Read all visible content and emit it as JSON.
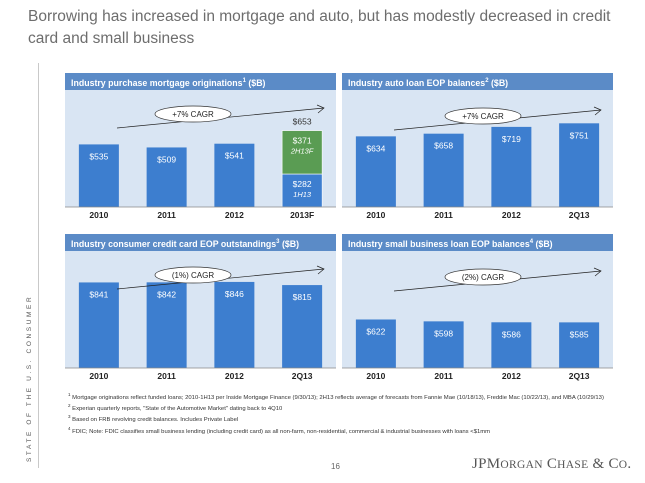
{
  "title": "Borrowing has increased in mortgage and auto, but has modestly decreased in credit card and small business",
  "side_label": "STATE OF THE U.S. CONSUMER",
  "page_number": "16",
  "logo_text": "JPMorgan Chase & Co.",
  "colors": {
    "header": "#5b8bc7",
    "plot_bg": "#d9e5f3",
    "bar": "#3d7ecf",
    "bar_green": "#5a9c53",
    "label": "#ffffff"
  },
  "footnotes": [
    {
      "num": "1",
      "text": "Mortgage originations reflect funded loans; 2010-1H13 per Inside Mortgage Finance (9/30/13); 2H13 reflects average of forecasts from Fannie Mae (10/18/13), Freddie Mac (10/22/13), and MBA (10/29/13)"
    },
    {
      "num": "2",
      "text": "Experian quarterly reports, \"State of the Automotive Market\" dating back to 4Q10"
    },
    {
      "num": "3",
      "text": "Based on FRB revolving credit balances. Includes Private Label"
    },
    {
      "num": "4",
      "text": "FDIC; Note: FDIC classifies small business lending (including credit card) as all non-farm, non-residential, commercial & industrial businesses with loans <$1mm"
    }
  ],
  "chart_data": [
    {
      "type": "bar",
      "title": "Industry purchase mortgage originations",
      "title_sup": "1",
      "title_suffix": " ($B)",
      "categories": [
        "2010",
        "2011",
        "2012",
        "2013F"
      ],
      "values": [
        535,
        509,
        541,
        653
      ],
      "labels": [
        "$535",
        "$509",
        "$541",
        "$653"
      ],
      "stack": {
        "index": 3,
        "segments": [
          {
            "name": "1H13",
            "value": 282,
            "label": "$282",
            "color": "#3d7ecf"
          },
          {
            "name": "2H13F",
            "value": 371,
            "label": "$371",
            "color": "#5a9c53"
          }
        ]
      },
      "annotation": {
        "text": "+7% CAGR",
        "side": "left"
      },
      "ylim": [
        0,
        1000
      ]
    },
    {
      "type": "bar",
      "title": "Industry auto loan EOP balances",
      "title_sup": "2",
      "title_suffix": " ($B)",
      "categories": [
        "2010",
        "2011",
        "2012",
        "2Q13"
      ],
      "values": [
        634,
        658,
        719,
        751
      ],
      "labels": [
        "$634",
        "$658",
        "$719",
        "$751"
      ],
      "annotation": {
        "text": "+7% CAGR",
        "side": "right"
      },
      "ylim": [
        0,
        1050
      ]
    },
    {
      "type": "bar",
      "title": "Industry consumer credit card EOP outstandings",
      "title_sup": "3",
      "title_suffix": " ($B)",
      "categories": [
        "2010",
        "2011",
        "2012",
        "2Q13"
      ],
      "values": [
        841,
        842,
        846,
        815
      ],
      "labels": [
        "$841",
        "$842",
        "$846",
        "$815"
      ],
      "annotation": {
        "text": "(1%) CAGR",
        "side": "left"
      },
      "ylim": [
        0,
        1150
      ]
    },
    {
      "type": "bar",
      "title": "Industry small business loan EOP balances",
      "title_sup": "4",
      "title_suffix": " ($B)",
      "categories": [
        "2010",
        "2011",
        "2012",
        "2Q13"
      ],
      "values": [
        622,
        598,
        586,
        585
      ],
      "labels": [
        "$622",
        "$598",
        "$586",
        "$585"
      ],
      "annotation": {
        "text": "(2%) CAGR",
        "side": "right"
      },
      "ylim": [
        0,
        1500
      ]
    }
  ]
}
